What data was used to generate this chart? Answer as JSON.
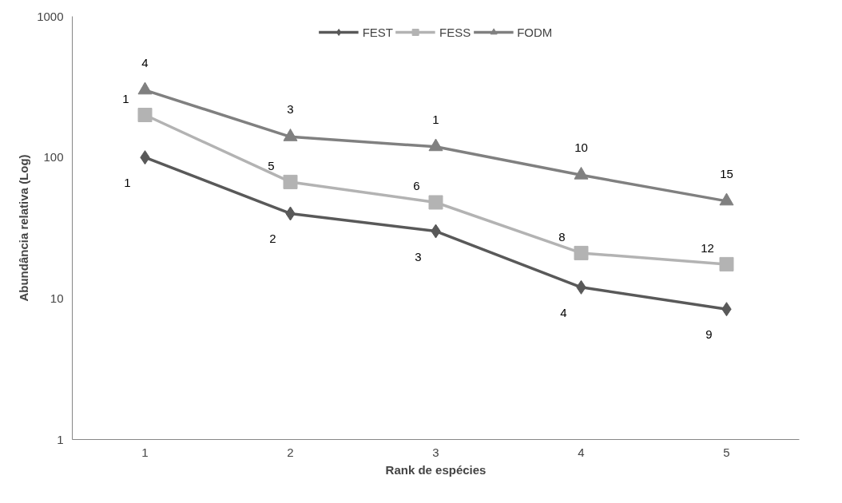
{
  "chart_data": {
    "type": "line",
    "xlabel": "Rank de espécies",
    "ylabel": "Abundância relativa (Log)",
    "categories": [
      "1",
      "2",
      "3",
      "4",
      "5"
    ],
    "series": [
      {
        "name": "FEST",
        "color": "#595959",
        "marker": "diamond",
        "values": [
          100,
          40,
          30,
          12,
          8.4
        ]
      },
      {
        "name": "FESS",
        "color": "#b3b3b3",
        "marker": "square",
        "values": [
          200,
          67,
          48,
          21,
          17.5
        ]
      },
      {
        "name": "FODM",
        "color": "#808080",
        "marker": "triangle",
        "values": [
          300,
          140,
          119,
          75,
          49
        ]
      }
    ],
    "log": true,
    "ylim": [
      1,
      1000
    ],
    "yticks": [
      1,
      10,
      100,
      1000
    ],
    "grid": false,
    "legend": "top",
    "line_style": "solid",
    "annotations": [
      {
        "text": "4",
        "x": "1",
        "y": 300
      },
      {
        "text": "3",
        "x": "2",
        "y": 140
      },
      {
        "text": "1",
        "x": "3",
        "y": 119
      },
      {
        "text": "10",
        "x": "4",
        "y": 75
      },
      {
        "text": "15",
        "x": "5",
        "y": 49
      },
      {
        "text": "1",
        "x": "1",
        "y": 200
      },
      {
        "text": "5",
        "x": "2",
        "y": 67
      },
      {
        "text": "6",
        "x": "3",
        "y": 48
      },
      {
        "text": "8",
        "x": "4",
        "y": 21
      },
      {
        "text": "12",
        "x": "5",
        "y": 17.5
      },
      {
        "text": "1",
        "x": "1",
        "y": 100
      },
      {
        "text": "2",
        "x": "2",
        "y": 40
      },
      {
        "text": "3",
        "x": "3",
        "y": 30
      },
      {
        "text": "4",
        "x": "4",
        "y": 12
      },
      {
        "text": "9",
        "x": "5",
        "y": 8.4
      }
    ]
  }
}
